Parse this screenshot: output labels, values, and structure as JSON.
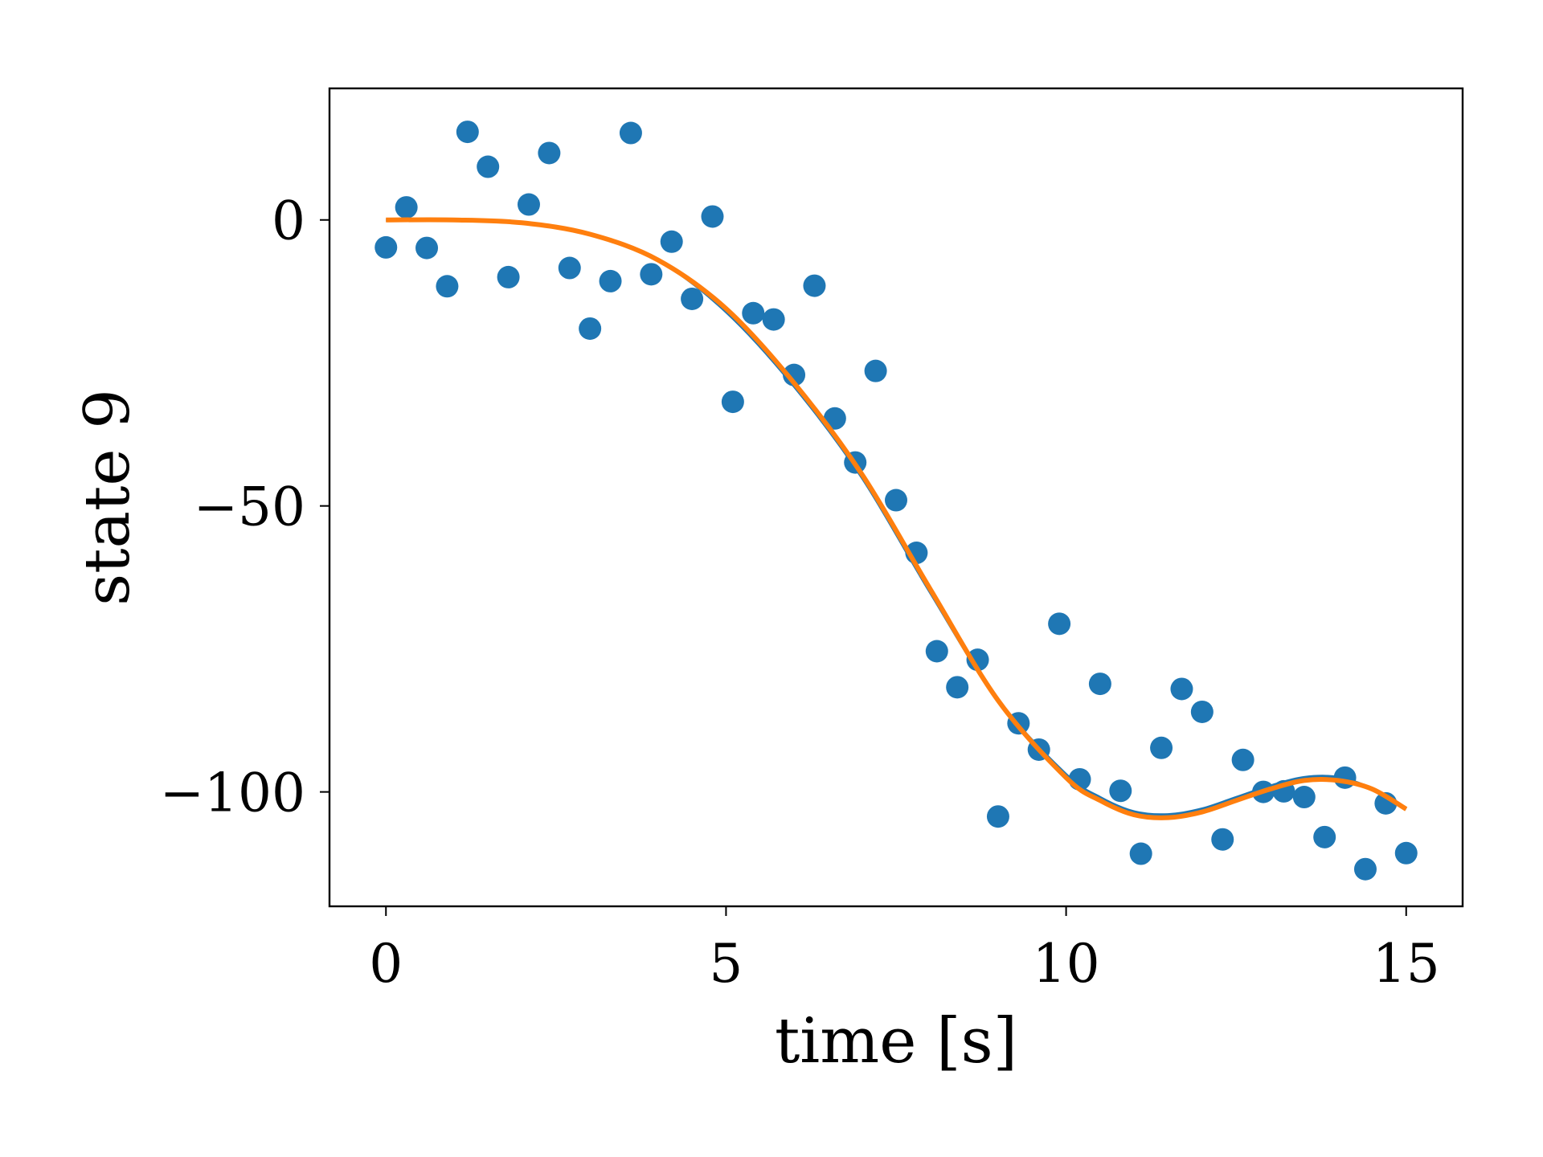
{
  "chart_data": {
    "type": "scatter",
    "xlabel": "time [s]",
    "ylabel": "state 9",
    "xlim": [
      -0.83,
      15.83
    ],
    "ylim": [
      -120.0,
      23.0
    ],
    "x_ticks": [
      0,
      5,
      10,
      15
    ],
    "x_tick_labels": [
      "0",
      "5",
      "10",
      "15"
    ],
    "y_ticks": [
      0,
      -50,
      -100
    ],
    "y_tick_labels": [
      "0",
      "−50",
      "−100"
    ],
    "grid": false,
    "legend": "none",
    "series": [
      {
        "kind": "scatter",
        "color": "#1f77b4",
        "x": [
          0.0,
          0.3,
          0.6,
          0.9,
          1.2,
          1.5,
          1.8,
          2.1,
          2.4,
          2.7,
          3.0,
          3.3,
          3.6,
          3.9,
          4.2,
          4.5,
          4.8,
          5.1,
          5.4,
          5.7,
          6.0,
          6.3,
          6.6,
          6.9,
          7.2,
          7.5,
          7.8,
          8.1,
          8.4,
          8.7,
          9.0,
          9.3,
          9.6,
          9.9,
          10.2,
          10.5,
          10.8,
          11.1,
          11.4,
          11.7,
          12.0,
          12.3,
          12.6,
          12.9,
          13.2,
          13.5,
          13.8,
          14.1,
          14.4,
          14.7,
          15.0
        ],
        "y": [
          -4.8,
          2.2,
          -4.9,
          -11.6,
          15.4,
          9.3,
          -10.0,
          2.7,
          11.7,
          -8.4,
          -19.0,
          -10.7,
          15.2,
          -9.5,
          -3.8,
          -13.8,
          0.6,
          -31.8,
          -16.3,
          -17.4,
          -27.1,
          -11.5,
          -34.7,
          -42.4,
          -26.4,
          -49.0,
          -58.2,
          -75.4,
          -81.7,
          -76.9,
          -104.3,
          -88.0,
          -92.6,
          -70.6,
          -97.8,
          -81.1,
          -99.8,
          -110.8,
          -92.3,
          -82.0,
          -86.0,
          -108.3,
          -94.4,
          -100.0,
          -99.9,
          -100.9,
          -107.9,
          -97.5,
          -113.5,
          -102.0,
          -110.7
        ]
      },
      {
        "kind": "line",
        "color": "#1f77b4",
        "x": [
          0,
          1,
          2,
          3,
          4,
          5,
          6,
          7,
          8,
          9,
          10,
          10.5,
          11,
          11.5,
          12,
          12.5,
          13,
          13.5,
          14,
          14.5,
          15
        ],
        "y": [
          0,
          0,
          -0.5,
          -2.5,
          -7,
          -16,
          -29,
          -45,
          -65,
          -84,
          -97,
          -101,
          -103.5,
          -104,
          -103,
          -101,
          -99,
          -97.5,
          -97.5,
          -99.5,
          -103
        ]
      },
      {
        "kind": "line",
        "color": "#ff7f0e",
        "x": [
          0,
          1,
          2,
          3,
          4,
          5,
          6,
          7,
          8,
          9,
          10,
          10.5,
          11,
          11.5,
          12,
          12.5,
          13,
          13.5,
          14,
          14.5,
          15
        ],
        "y": [
          0,
          0,
          -0.5,
          -2.5,
          -7,
          -15.5,
          -28.5,
          -44.5,
          -64.5,
          -84,
          -97.5,
          -101.5,
          -104,
          -104.5,
          -103.5,
          -101.5,
          -99.5,
          -98,
          -98,
          -99.5,
          -103
        ]
      }
    ]
  }
}
